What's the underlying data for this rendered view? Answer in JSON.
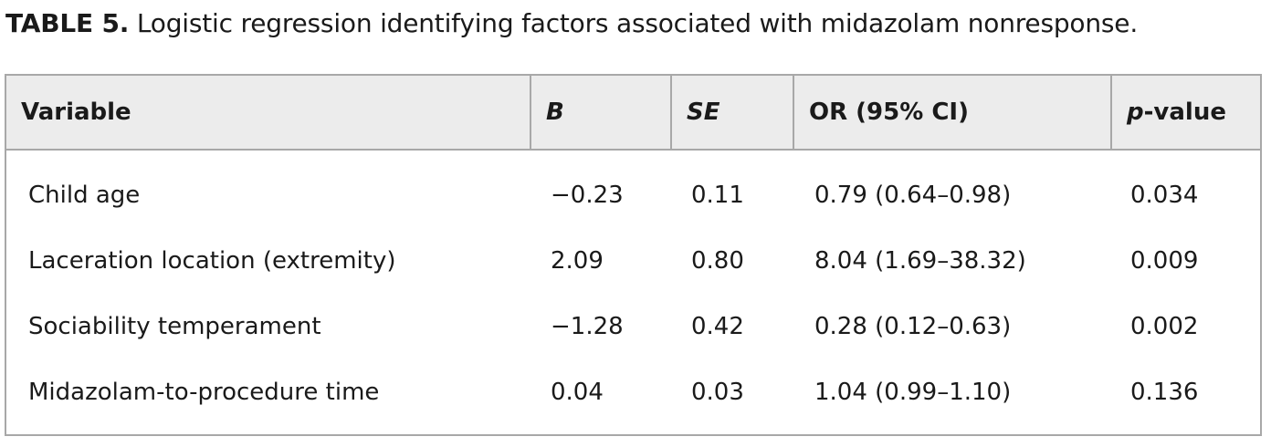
{
  "caption": {
    "label": "TABLE 5.",
    "text": " Logistic regression identifying factors associated with midazolam nonresponse."
  },
  "table": {
    "headers": {
      "variable": "Variable",
      "b": "B",
      "se": "SE",
      "or_ci": "OR (95% CI)",
      "p_italic": "p",
      "p_rest": "-value"
    },
    "rows": [
      {
        "variable": "Child age",
        "b": "−0.23",
        "se": "0.11",
        "or_ci": "0.79 (0.64–0.98)",
        "p": "0.034"
      },
      {
        "variable": "Laceration location (extremity)",
        "b": "2.09",
        "se": "0.80",
        "or_ci": "8.04 (1.69–38.32)",
        "p": "0.009"
      },
      {
        "variable": "Sociability temperament",
        "b": "−1.28",
        "se": "0.42",
        "or_ci": "0.28 (0.12–0.63)",
        "p": "0.002"
      },
      {
        "variable": "Midazolam-to-procedure time",
        "b": "0.04",
        "se": "0.03",
        "or_ci": "1.04 (0.99–1.10)",
        "p": "0.136"
      }
    ]
  }
}
